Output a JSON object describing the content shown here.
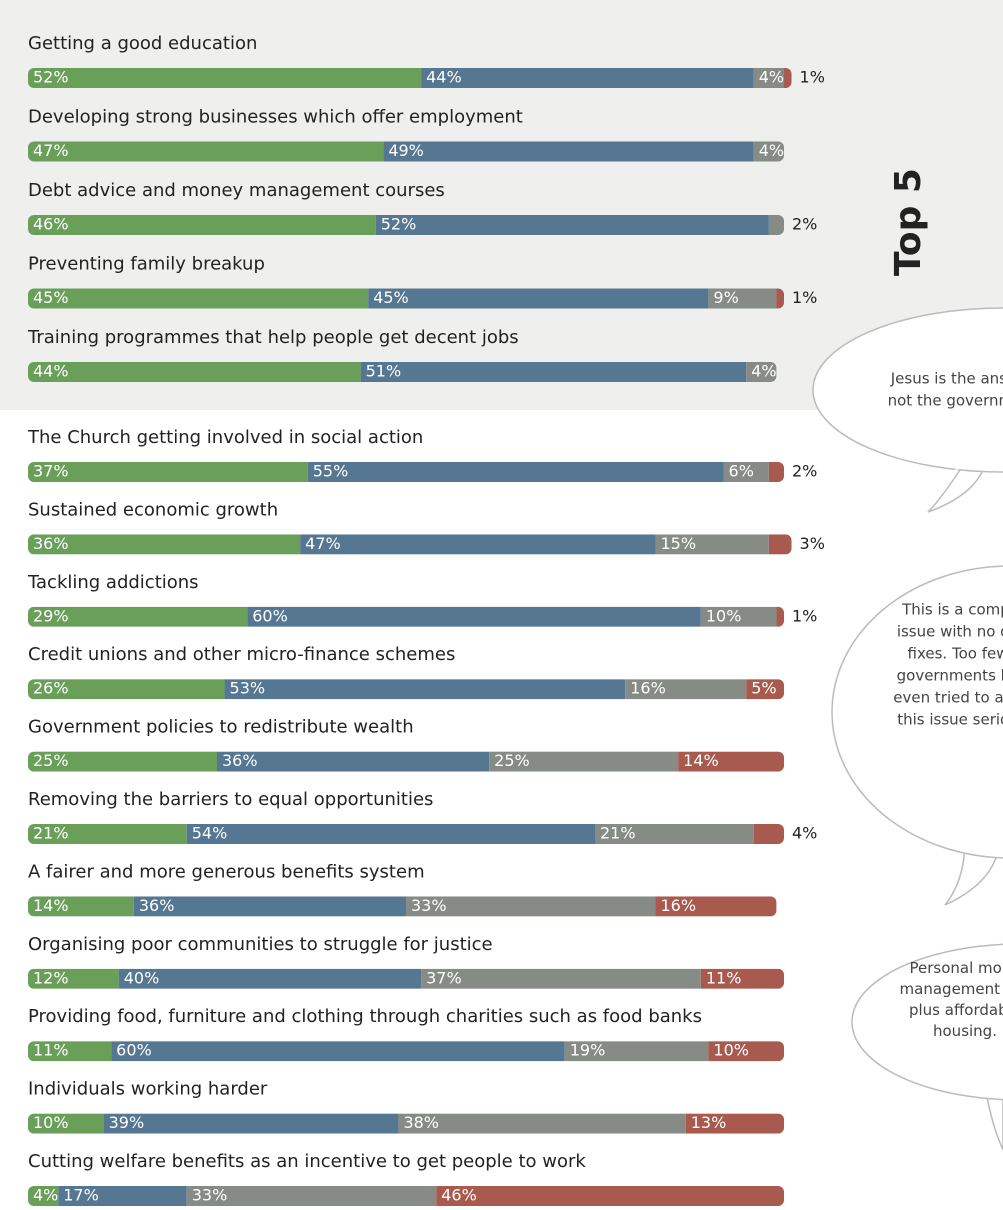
{
  "chart_data": {
    "type": "bar",
    "orientation": "horizontal",
    "stacked": true,
    "xlim": [
      0,
      100
    ],
    "categories": [
      "Getting a good education",
      "Developing strong businesses which offer employment",
      "Debt advice and money management courses",
      "Preventing family breakup",
      "Training programmes that help people get decent jobs",
      "The Church getting involved in social action",
      "Sustained economic growth",
      "Tackling addictions",
      "Credit unions and other micro-finance schemes",
      "Government policies to redistribute wealth",
      "Removing the barriers to equal opportunities",
      "A fairer and more generous benefits system",
      "Organising poor communities to struggle for justice",
      "Providing food, furniture and clothing through charities such as food banks",
      "Individuals working harder",
      "Cutting welfare benefits as an incentive to get people to work"
    ],
    "series": [
      {
        "color": "#6a9f5a",
        "values": [
          52,
          47,
          46,
          45,
          44,
          37,
          36,
          29,
          26,
          25,
          21,
          14,
          12,
          11,
          10,
          4
        ],
        "value_labels": [
          "52%",
          "47%",
          "46%",
          "45%",
          "44%",
          "37%",
          "36%",
          "29%",
          "26%",
          "25%",
          "21%",
          "14%",
          "12%",
          "11%",
          "10%",
          "4%"
        ]
      },
      {
        "color": "#567792",
        "values": [
          44,
          49,
          52,
          45,
          51,
          55,
          47,
          60,
          53,
          36,
          54,
          36,
          40,
          60,
          39,
          17
        ],
        "value_labels": [
          "44%",
          "49%",
          "52%",
          "45%",
          "51%",
          "55%",
          "47%",
          "60%",
          "53%",
          "36%",
          "54%",
          "36%",
          "40%",
          "60%",
          "39%",
          "17%"
        ]
      },
      {
        "color": "#878b86",
        "values": [
          4,
          4,
          2,
          9,
          4,
          6,
          15,
          10,
          16,
          25,
          21,
          33,
          37,
          19,
          38,
          33
        ],
        "value_labels": [
          "4%",
          "4%",
          "2%",
          "9%",
          "4%",
          "6%",
          "15%",
          "10%",
          "16%",
          "25%",
          "21%",
          "33%",
          "37%",
          "19%",
          "38%",
          "33%"
        ]
      },
      {
        "color": "#a85a4e",
        "values": [
          1,
          null,
          null,
          1,
          null,
          2,
          3,
          1,
          5,
          14,
          4,
          16,
          11,
          10,
          13,
          46
        ],
        "value_labels": [
          "1%",
          null,
          null,
          "1%",
          null,
          "2%",
          "3%",
          "1%",
          "5%",
          "14%",
          "4%",
          "16%",
          "11%",
          "10%",
          "13%",
          "46%"
        ]
      }
    ],
    "heading": "Top 5",
    "bubbles": [
      [
        "Jesus is the answ",
        "not the governme"
      ],
      [
        "This is a compl",
        "issue with no qu",
        "fixes. Too few",
        "governments ha",
        "even tried to add",
        "this issue seriou"
      ],
      [
        "Personal mone",
        "management is v",
        "plus affordable",
        "housing."
      ]
    ]
  }
}
